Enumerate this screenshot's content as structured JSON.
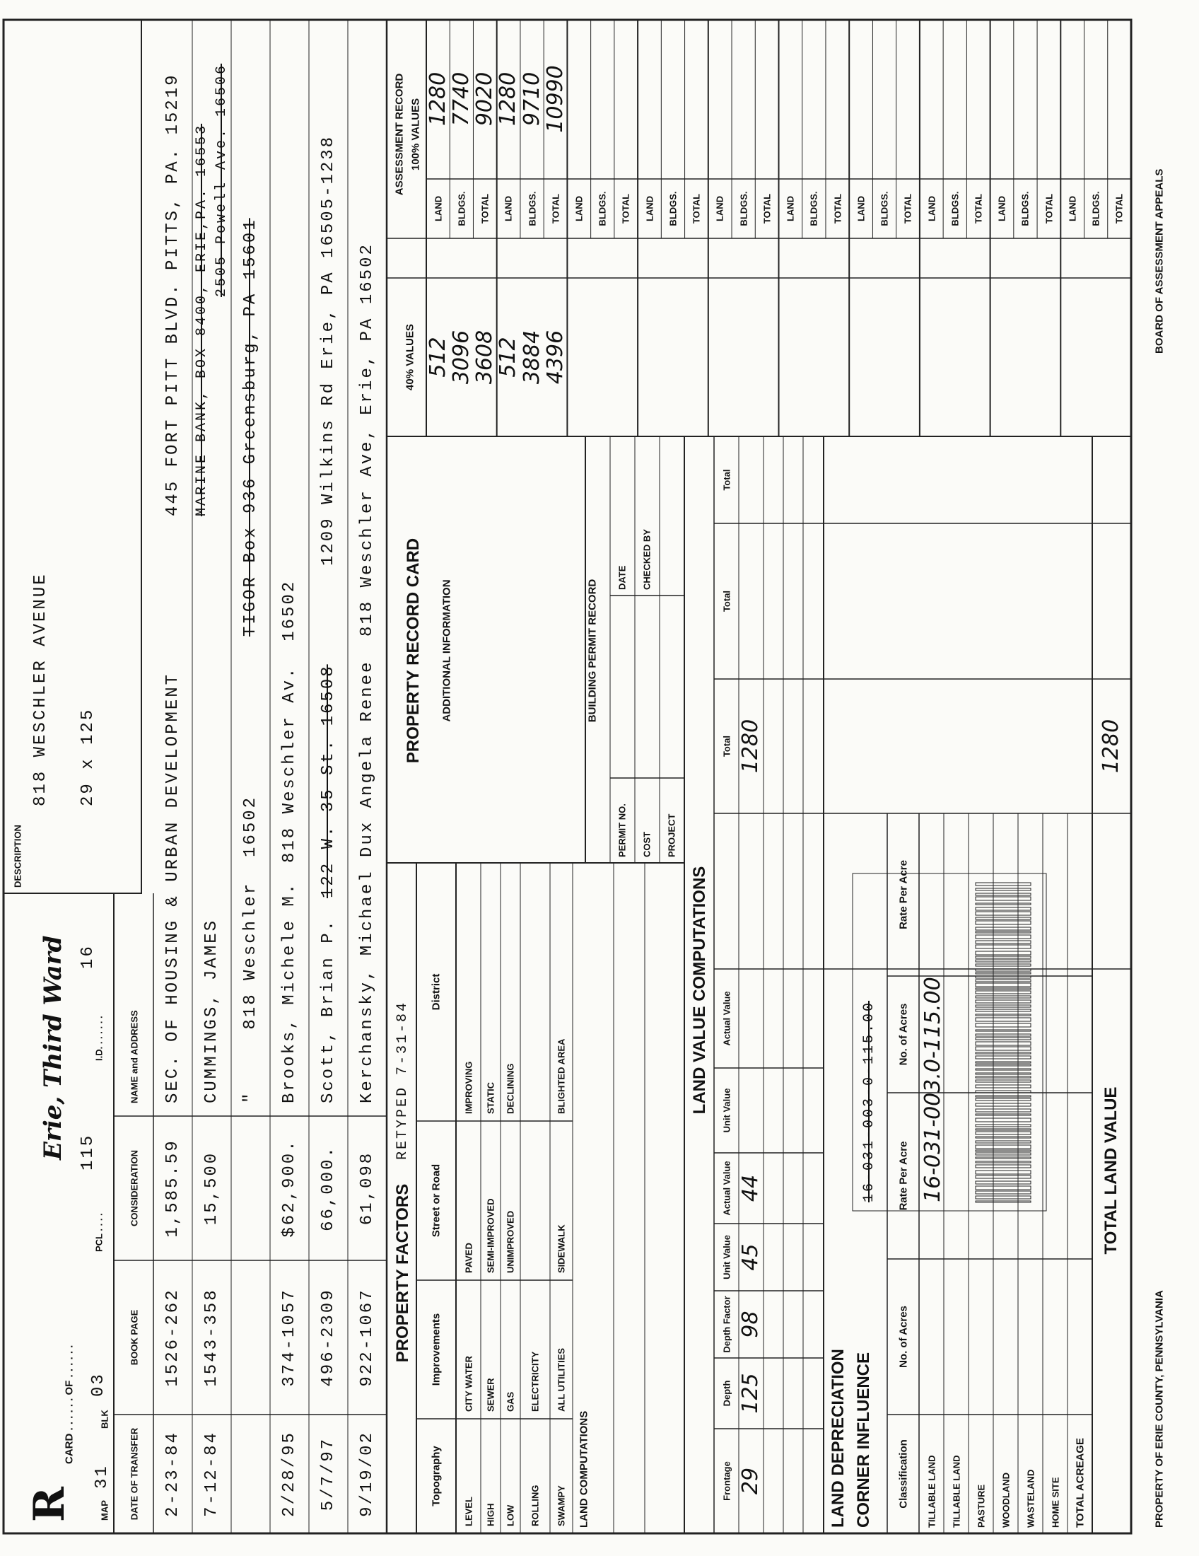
{
  "header": {
    "stamp": "R",
    "card": "CARD . . . . . . OF . . . . . .",
    "map_label": "MAP",
    "map": "31",
    "blk_label": "BLK",
    "blk": "03",
    "pcl_label": "PCL . . . .",
    "pcl": "115",
    "id_label": "I.D. . . . . . .",
    "id": "16",
    "ward": "Erie, Third Ward"
  },
  "description": {
    "label": "DESCRIPTION",
    "address": "818 WESCHLER AVENUE",
    "lot_size": "29 x 125"
  },
  "transfers": {
    "headers": [
      "DATE OF TRANSFER",
      "BOOK PAGE",
      "CONSIDERATION",
      "NAME and ADDRESS"
    ],
    "rows": [
      {
        "date": "2-23-84",
        "book_page": "1526-262",
        "consideration": "1,585.59",
        "name": "SEC. OF HOUSING & URBAN DEVELOPMENT",
        "address": "445 FORT PITT BLVD. PITTS, PA. 15219"
      },
      {
        "date": "7-12-84",
        "book_page": "1543-358",
        "consideration": "15,500",
        "name": "CUMMINGS, JAMES",
        "struck": [
          "MARINE BANK, BOX 8400, ERIE,PA. 16553",
          "2505 Powell Ave. 16506"
        ]
      },
      {
        "name": "\"     818 Weschler  16502",
        "struck": [
          "TIGOR Box 936 Greensburg, PA 15601"
        ]
      },
      {
        "date": "2/28/95",
        "book_page": "374-1057",
        "consideration": "$62,900.",
        "name": "Brooks, Michele M.",
        "address": "818 Weschler Av.  16502"
      },
      {
        "date": "5/7/97",
        "book_page": "496-2309",
        "consideration": "66,000.",
        "name": "Scott, Brian P.",
        "address": "1209 Wilkins Rd Erie, PA 16505-1238",
        "struck": [
          "122 W. 35 St. 16508"
        ]
      },
      {
        "date": "9/19/02",
        "book_page": "922-1067",
        "consideration": "61,098",
        "name": "Kerchansky, Michael Dux Angela Renee",
        "address": "818 Weschler Ave, Erie, PA 16502"
      }
    ]
  },
  "property_factors": {
    "title": "PROPERTY FACTORS",
    "retyped": "RETYPED 7-31-84",
    "headers": [
      "Topography",
      "Improvements",
      "Street or Road",
      "District"
    ],
    "topography": [
      "LEVEL",
      "HIGH",
      "LOW",
      "ROLLING",
      "SWAMPY"
    ],
    "improvements": [
      "CITY WATER",
      "SEWER",
      "GAS",
      "ELECTRICITY",
      "ALL UTILITIES"
    ],
    "street_or_road": [
      "PAVED",
      "SEMI-IMPROVED",
      "UNIMPROVED",
      "SIDEWALK"
    ],
    "district": [
      "IMPROVING",
      "STATIC",
      "DECLINING",
      "BLIGHTED AREA"
    ]
  },
  "land_computations_label": "LAND COMPUTATIONS",
  "record_card": {
    "title": "PROPERTY RECORD CARD",
    "additional": "ADDITIONAL INFORMATION"
  },
  "building_permit": {
    "title": "BUILDING PERMIT RECORD",
    "labels": [
      "PERMIT NO.",
      "COST",
      "PROJECT"
    ],
    "right_labels": [
      "DATE",
      "CHECKED BY"
    ]
  },
  "land_value": {
    "title": "LAND VALUE COMPUTATIONS",
    "headers": [
      "Frontage",
      "Depth",
      "Depth Factor",
      "Unit Value",
      "Actual Value",
      "Unit Value",
      "Actual Value",
      "Total",
      "Total",
      "Total"
    ],
    "row": {
      "frontage": 29,
      "depth": 125,
      "depth_factor": 98,
      "unit_value": 45,
      "actual_value": 44,
      "total": 1280
    },
    "total_label": "TOTAL LAND VALUE",
    "total": 1280
  },
  "depreciation": {
    "title": "LAND DEPRECIATION",
    "corner": "CORNER INFLUENCE",
    "headers": [
      "Classification",
      "No. of Acres",
      "Rate Per Acre",
      "No. of Acres",
      "Rate Per Acre"
    ],
    "classes": [
      "TILLABLE LAND",
      "TILLABLE LAND",
      "PASTURE",
      "WOODLAND",
      "WASTELAND",
      "HOME SITE",
      "TOTAL ACREAGE"
    ]
  },
  "parcel_label": {
    "number": "16-031-003.0-115.00",
    "struck": "16-031-003-0-115.00"
  },
  "assessment": {
    "title": "ASSESSMENT RECORD",
    "subtitle": "100% VALUES",
    "values40_label": "40% VALUES",
    "row_labels": [
      "LAND",
      "BLDGS.",
      "TOTAL"
    ],
    "values_40": [
      [
        512,
        3096,
        3608
      ],
      [
        512,
        3884,
        4396
      ]
    ],
    "values_100": [
      [
        1280,
        7740,
        9020
      ],
      [
        1280,
        9710,
        10990
      ]
    ]
  },
  "footer": {
    "left": "PROPERTY OF ERIE COUNTY, PENNSYLVANIA",
    "right": "BOARD OF ASSESSMENT APPEALS"
  }
}
